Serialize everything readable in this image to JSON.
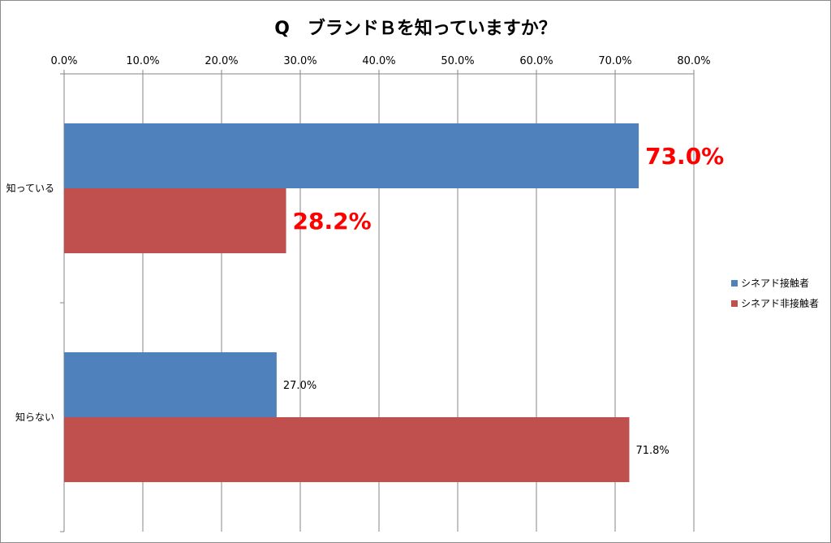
{
  "chart_data": {
    "type": "bar",
    "orientation": "horizontal",
    "title": "Q　ブランドＢを知っていますか？",
    "categories": [
      "知っている",
      "知らない"
    ],
    "series": [
      {
        "name": "シネアド接触者",
        "values": [
          73.0,
          27.0
        ],
        "color": "#4f81bd"
      },
      {
        "name": "シネアド非接触者",
        "values": [
          28.2,
          71.8
        ],
        "color": "#c0504d"
      }
    ],
    "data_labels": [
      [
        "73.0%",
        "27.0%"
      ],
      [
        "28.2%",
        "71.8%"
      ]
    ],
    "highlight_labels": [
      [
        true,
        false
      ],
      [
        true,
        false
      ]
    ],
    "highlight_color": "#ff0000",
    "x_ticks": [
      "0.0%",
      "10.0%",
      "20.0%",
      "30.0%",
      "40.0%",
      "50.0%",
      "60.0%",
      "70.0%",
      "80.0%"
    ],
    "xlim": [
      0,
      80
    ],
    "x_axis_position": "top",
    "grid": true,
    "legend_position": "right",
    "xlabel": "",
    "ylabel": ""
  }
}
